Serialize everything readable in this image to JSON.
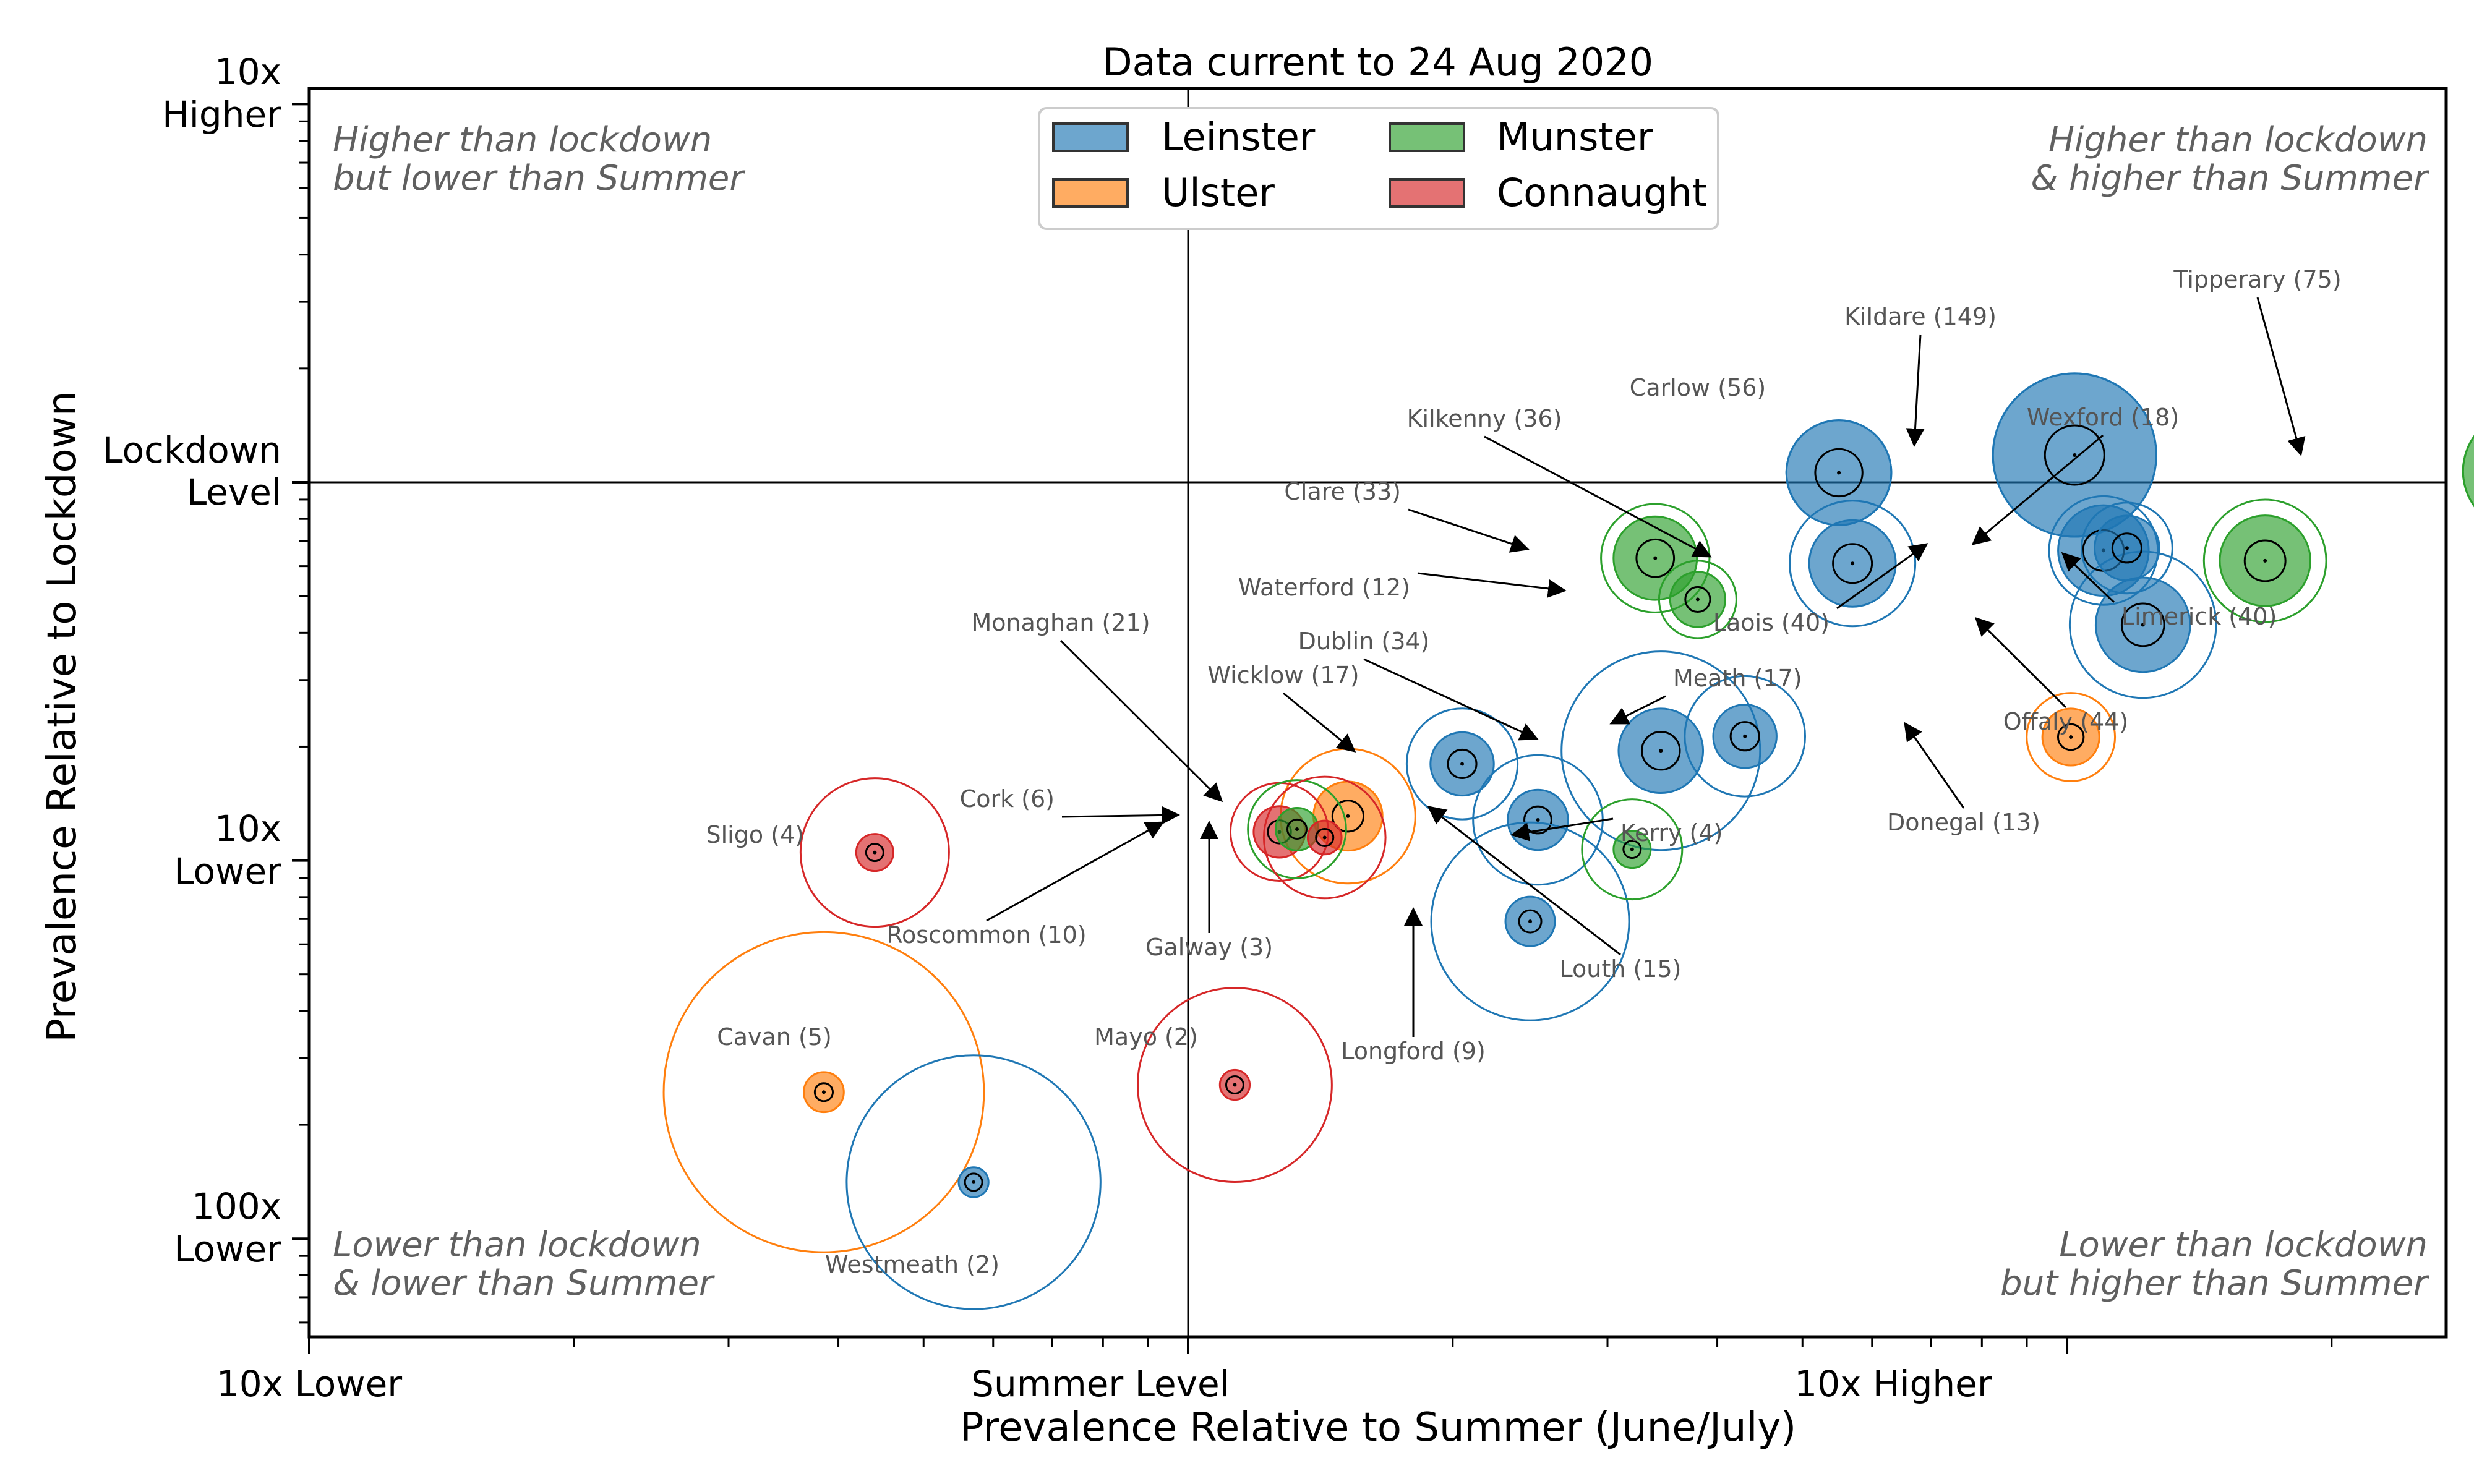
{
  "chart_data": {
    "type": "scatter",
    "title": "Data current to 24 Aug 2020",
    "xlabel": "Prevalence Relative to Summer (June/July)",
    "ylabel": "Prevalence Relative to Lockdown",
    "x_scale": "log",
    "y_scale": "log",
    "xlim": [
      0.1,
      27
    ],
    "ylim": [
      0.0055,
      11
    ],
    "x_ticks": [
      {
        "value": 0.1,
        "label": "10x Lower"
      },
      {
        "value": 1,
        "label": "Summer Level"
      },
      {
        "value": 10,
        "label": "10x Higher"
      }
    ],
    "y_ticks": [
      {
        "value": 10,
        "label_top": "10x",
        "label_bottom": "Higher"
      },
      {
        "value": 1,
        "label_top": "Lockdown",
        "label_bottom": "Level"
      },
      {
        "value": 0.1,
        "label_top": "10x",
        "label_bottom": "Lower"
      },
      {
        "value": 0.01,
        "label_top": "100x",
        "label_bottom": "Lower"
      }
    ],
    "reference_lines": {
      "x": 1,
      "y": 1
    },
    "quadrant_notes": {
      "top_left": [
        "Higher than lockdown",
        "but lower than Summer"
      ],
      "top_right": [
        "Higher than lockdown",
        "& higher than Summer"
      ],
      "bottom_left": [
        "Lower than lockdown",
        "& lower than Summer"
      ],
      "bottom_right": [
        "Lower than lockdown",
        "but higher than Summer"
      ]
    },
    "legend": {
      "placement": "upper-center",
      "entries": [
        {
          "name": "Leinster",
          "color": "#1f77b4"
        },
        {
          "name": "Munster",
          "color": "#2ca02c"
        },
        {
          "name": "Ulster",
          "color": "#ff7f0e"
        },
        {
          "name": "Connaught",
          "color": "#d62728"
        }
      ]
    },
    "provinces": {
      "Leinster": "#1f77b4",
      "Ulster": "#ff7f0e",
      "Munster": "#2ca02c",
      "Connaught": "#d62728"
    },
    "points": [
      {
        "label": "Kildare (149)",
        "province": "Leinster",
        "x": 10.2,
        "y": 1.18,
        "cases": 149
      },
      {
        "label": "Tipperary (75)",
        "province": "Munster",
        "x": 33,
        "y": 1.07,
        "cases": 75
      },
      {
        "label": "Carlow (56)",
        "province": "Leinster",
        "x": 5.5,
        "y": 1.06,
        "cases": 56
      },
      {
        "label": "Kilkenny (36)",
        "province": "Leinster",
        "x": 5.7,
        "y": 0.61,
        "cases": 36
      },
      {
        "label": "Wexford (18)",
        "province": "Leinster",
        "x": 11.7,
        "y": 0.67,
        "cases": 18
      },
      {
        "label": "Laois (40)",
        "province": "Leinster",
        "x": 11.0,
        "y": 0.66,
        "cases": 40
      },
      {
        "label": "Limerick (40)",
        "province": "Munster",
        "x": 16.8,
        "y": 0.62,
        "cases": 40
      },
      {
        "label": "Offaly (44)",
        "province": "Leinster",
        "x": 12.2,
        "y": 0.42,
        "cases": 44
      },
      {
        "label": "Clare (33)",
        "province": "Munster",
        "x": 3.4,
        "y": 0.63,
        "cases": 33
      },
      {
        "label": "Waterford (12)",
        "province": "Munster",
        "x": 3.8,
        "y": 0.49,
        "cases": 12
      },
      {
        "label": "Dublin (34)",
        "province": "Leinster",
        "x": 3.45,
        "y": 0.195,
        "cases": 34
      },
      {
        "label": "Meath (17)",
        "province": "Leinster",
        "x": 4.3,
        "y": 0.213,
        "cases": 17
      },
      {
        "label": "Wicklow (17)",
        "province": "Leinster",
        "x": 2.05,
        "y": 0.18,
        "cases": 17
      },
      {
        "label": "Donegal (13)",
        "province": "Ulster",
        "x": 10.1,
        "y": 0.212,
        "cases": 13
      },
      {
        "label": "Louth (15)",
        "province": "Leinster",
        "x": 2.5,
        "y": 0.128,
        "cases": 15
      },
      {
        "label": "Kerry (4)",
        "province": "Munster",
        "x": 3.2,
        "y": 0.107,
        "cases": 4
      },
      {
        "label": "Longford (9)",
        "province": "Leinster",
        "x": 2.45,
        "y": 0.069,
        "cases": 9
      },
      {
        "label": "Monaghan (21)",
        "province": "Ulster",
        "x": 1.52,
        "y": 0.131,
        "cases": 21
      },
      {
        "label": "Cork (6)",
        "province": "Munster",
        "x": 1.33,
        "y": 0.121,
        "cases": 6
      },
      {
        "label": "Roscommon (10)",
        "province": "Connaught",
        "x": 1.27,
        "y": 0.119,
        "cases": 10
      },
      {
        "label": "Galway (3)",
        "province": "Connaught",
        "x": 1.43,
        "y": 0.115,
        "cases": 3
      },
      {
        "label": "Sligo (4)",
        "province": "Connaught",
        "x": 0.44,
        "y": 0.105,
        "cases": 4
      },
      {
        "label": "Mayo (2)",
        "province": "Connaught",
        "x": 1.13,
        "y": 0.0255,
        "cases": 2
      },
      {
        "label": "Cavan (5)",
        "province": "Ulster",
        "x": 0.385,
        "y": 0.0244,
        "cases": 5
      },
      {
        "label": "Westmeath (2)",
        "province": "Leinster",
        "x": 0.57,
        "y": 0.0141,
        "cases": 2
      }
    ]
  }
}
